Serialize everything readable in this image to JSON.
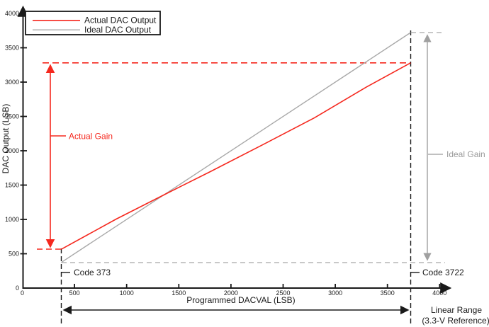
{
  "chart_data": {
    "type": "line",
    "title": "",
    "xlabel": "Programmed DACVAL (LSB)",
    "ylabel": "DAC Output (LSB)",
    "xlim": [
      0,
      4000
    ],
    "ylim": [
      0,
      4000
    ],
    "grid": false,
    "legend_position": "top-left",
    "x_ticks": [
      "0",
      "500",
      "1000",
      "1500",
      "2000",
      "2500",
      "3000",
      "3500",
      "4000"
    ],
    "y_ticks": [
      "0",
      "500",
      "1000",
      "1500",
      "2000",
      "2500",
      "3000",
      "3500",
      "4000"
    ],
    "series": [
      {
        "name": "Actual DAC Output",
        "color": "#f5281e",
        "points": [
          [
            373,
            565
          ],
          [
            900,
            1005
          ],
          [
            1360,
            1360
          ],
          [
            1800,
            1695
          ],
          [
            2300,
            2085
          ],
          [
            2800,
            2480
          ],
          [
            3300,
            2930
          ],
          [
            3722,
            3280
          ]
        ]
      },
      {
        "name": "Ideal DAC Output",
        "color": "#a8a8a8",
        "points": [
          [
            373,
            373
          ],
          [
            3722,
            3722
          ]
        ]
      }
    ],
    "annotations": {
      "actual_gain_label": "Actual Gain",
      "ideal_gain_label": "Ideal Gain",
      "code_low_label": "Code 373",
      "code_high_label": "Code 3722",
      "linear_range_label_line1": "Linear Range",
      "linear_range_label_line2": "(3.3-V Reference)",
      "linear_range_codes": [
        373,
        3722
      ],
      "colors": {
        "actual": "#f5281e",
        "ideal": "#a8a8a8",
        "ideal_text": "#9a9a9a",
        "axis": "#1a1a1a"
      }
    }
  }
}
